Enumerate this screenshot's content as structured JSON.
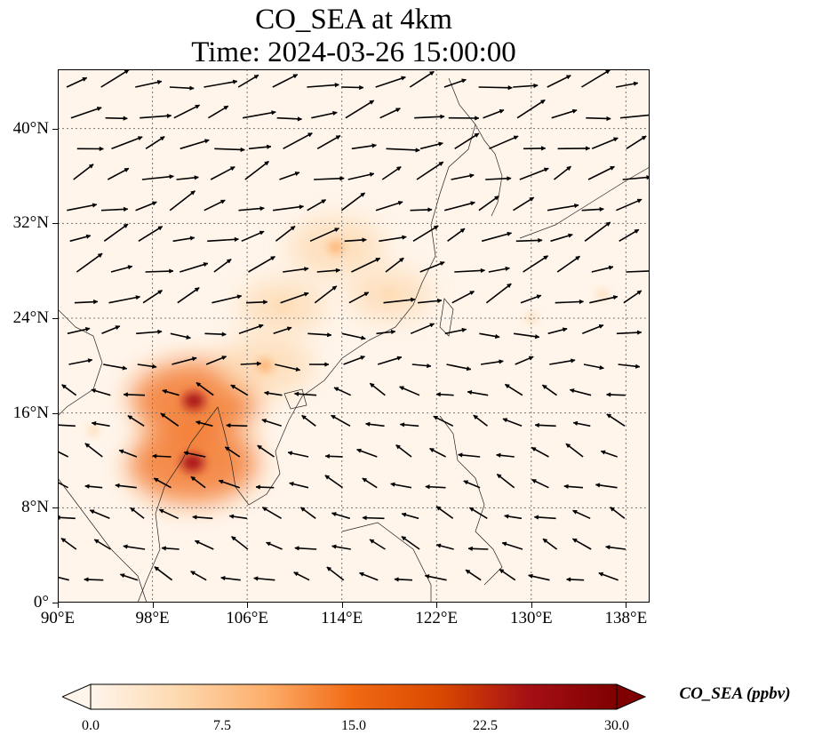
{
  "title": {
    "line1": "CO_SEA at 4km",
    "line2": "Time: 2024-03-26 15:00:00"
  },
  "map": {
    "extent": {
      "lon_min": 90,
      "lon_max": 140,
      "lat_min": 0,
      "lat_max": 45
    },
    "gridlines": true,
    "lat_ticks": [
      {
        "value": 0,
        "label": "0°"
      },
      {
        "value": 8,
        "label": "8°N"
      },
      {
        "value": 16,
        "label": "16°N"
      },
      {
        "value": 24,
        "label": "24°N"
      },
      {
        "value": 32,
        "label": "32°N"
      },
      {
        "value": 40,
        "label": "40°N"
      }
    ],
    "lon_ticks": [
      {
        "value": 90,
        "label": "90°E"
      },
      {
        "value": 98,
        "label": "98°E"
      },
      {
        "value": 106,
        "label": "106°E"
      },
      {
        "value": 114,
        "label": "114°E"
      },
      {
        "value": 122,
        "label": "122°E"
      },
      {
        "value": 130,
        "label": "130°E"
      },
      {
        "value": 138,
        "label": "138°E"
      }
    ],
    "plumes": [
      {
        "lon": 101.5,
        "lat": 17.0,
        "value": 26
      },
      {
        "lon": 101.4,
        "lat": 11.8,
        "value": 27
      },
      {
        "lon": 113.5,
        "lat": 30.0,
        "value": 11
      },
      {
        "lon": 107.5,
        "lat": 20.0,
        "value": 12
      },
      {
        "lon": 109.0,
        "lat": 25.0,
        "value": 7
      },
      {
        "lon": 118.0,
        "lat": 26.0,
        "value": 5
      },
      {
        "lon": 93.0,
        "lat": 14.5,
        "value": 4
      },
      {
        "lon": 130.0,
        "lat": 24.0,
        "value": 3
      },
      {
        "lon": 136.0,
        "lat": 26.0,
        "value": 3
      }
    ],
    "wind_flow": [
      {
        "lat_max": 45,
        "lat_min": 36,
        "direction_deg": -15,
        "speed": 1.0
      },
      {
        "lat_max": 36,
        "lat_min": 24,
        "direction_deg": -20,
        "speed": 0.9
      },
      {
        "lat_max": 24,
        "lat_min": 18,
        "direction_deg": -5,
        "speed": 0.6
      },
      {
        "lat_max": 18,
        "lat_min": 0,
        "direction_deg": 200,
        "speed": 0.4
      }
    ]
  },
  "colorbar": {
    "label": "CO_SEA (ppbv)",
    "min": 0.0,
    "max": 30.0,
    "extend": "both",
    "ticks": [
      {
        "value": 0,
        "label": "0.0"
      },
      {
        "value": 7.5,
        "label": "7.5"
      },
      {
        "value": 15,
        "label": "15.0"
      },
      {
        "value": 22.5,
        "label": "22.5"
      },
      {
        "value": 30,
        "label": "30.0"
      }
    ],
    "colors": [
      "#fff5eb",
      "#fdd9b0",
      "#fdae6b",
      "#f16913",
      "#d94801",
      "#a50f15",
      "#7f0000"
    ]
  }
}
